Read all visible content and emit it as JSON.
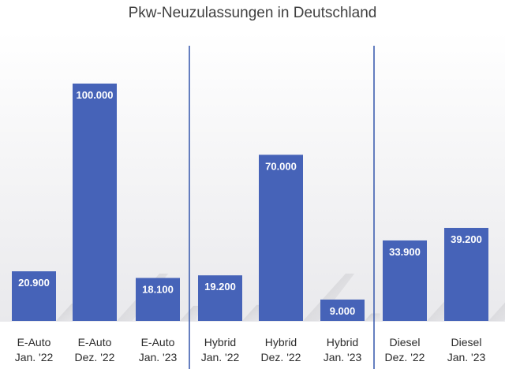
{
  "chart_data": {
    "type": "bar",
    "title": "Pkw-Neuzulassungen in Deutschland",
    "categories": [
      [
        "E-Auto",
        "Jan. '22"
      ],
      [
        "E-Auto",
        "Dez. '22"
      ],
      [
        "E-Auto",
        "Jan. '23"
      ],
      [
        "Hybrid",
        "Jan. '22"
      ],
      [
        "Hybrid",
        "Dez. '22"
      ],
      [
        "Hybrid",
        "Jan. '23"
      ],
      [
        "Diesel",
        "Dez. '22"
      ],
      [
        "Diesel",
        "Jan. '23"
      ]
    ],
    "values": [
      20900,
      100000,
      18100,
      19200,
      70000,
      9000,
      33900,
      39200
    ],
    "data_labels": [
      "20.900",
      "100.000",
      "18.100",
      "19.200",
      "70.000",
      "9.000",
      "33.900",
      "39.200"
    ],
    "ylim": [
      0,
      100000
    ],
    "xlabel": "",
    "ylabel": "",
    "grid": false,
    "colors": {
      "bar": "#4663b8",
      "divider": "#3f5fb0"
    }
  }
}
